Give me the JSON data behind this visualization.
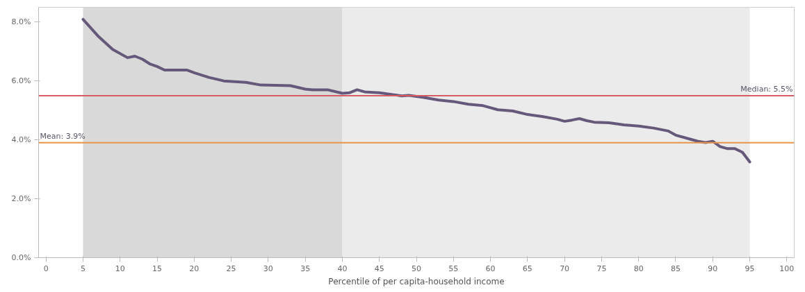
{
  "chart_data": {
    "type": "line",
    "xlabel": "Percentile of per capita-household income",
    "x": [
      5,
      7,
      9,
      11,
      12,
      13,
      14,
      15,
      16,
      19,
      20,
      22,
      24,
      27,
      29,
      33,
      35,
      36,
      38,
      40,
      41,
      42,
      43,
      45,
      47,
      48,
      49,
      51,
      53,
      55,
      57,
      59,
      61,
      63,
      65,
      67,
      69,
      70,
      71,
      72,
      73,
      74,
      76,
      78,
      80,
      82,
      84,
      85,
      87,
      88,
      89,
      90,
      91,
      92,
      93,
      94,
      95
    ],
    "series": [
      {
        "color": "#66587a",
        "values": [
          8.09,
          7.53,
          7.07,
          6.79,
          6.84,
          6.74,
          6.58,
          6.49,
          6.37,
          6.37,
          6.28,
          6.12,
          6.0,
          5.95,
          5.86,
          5.84,
          5.72,
          5.7,
          5.7,
          5.58,
          5.6,
          5.7,
          5.63,
          5.6,
          5.53,
          5.49,
          5.51,
          5.44,
          5.35,
          5.3,
          5.21,
          5.16,
          5.02,
          4.98,
          4.86,
          4.79,
          4.7,
          4.63,
          4.67,
          4.72,
          4.65,
          4.6,
          4.58,
          4.51,
          4.47,
          4.4,
          4.3,
          4.16,
          4.02,
          3.95,
          3.91,
          3.95,
          3.77,
          3.7,
          3.7,
          3.58,
          3.25
        ]
      }
    ],
    "xlim": [
      -1,
      101
    ],
    "xticks": [
      0,
      5,
      10,
      15,
      20,
      25,
      30,
      35,
      40,
      45,
      50,
      55,
      60,
      65,
      70,
      75,
      80,
      85,
      90,
      95,
      100
    ],
    "ylim": [
      0,
      8.5
    ],
    "yticks": [
      {
        "value": 0,
        "label": "0.0%"
      },
      {
        "value": 2,
        "label": "2.0%"
      },
      {
        "value": 4,
        "label": "4.0%"
      },
      {
        "value": 6,
        "label": "6.0%"
      },
      {
        "value": 8,
        "label": "8.0%"
      }
    ],
    "bands": [
      {
        "axis": "x",
        "from": 5,
        "to": 40,
        "color": "#d9d9d9"
      },
      {
        "axis": "x",
        "from": 40,
        "to": 95,
        "color": "#ebebeb"
      }
    ],
    "ref_lines": [
      {
        "axis": "y",
        "value": 5.5,
        "label": "Median: 5.5%",
        "color": "#d45c62"
      },
      {
        "axis": "y",
        "value": 3.9,
        "label": "Mean: 3.9%",
        "color": "#e8944a"
      }
    ],
    "grid": false,
    "marker": "none",
    "line_style": "solid"
  }
}
